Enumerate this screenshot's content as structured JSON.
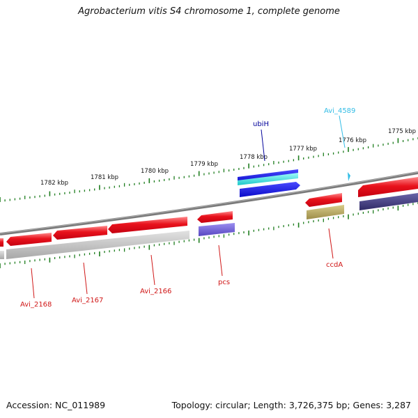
{
  "title": "Agrobacterium vitis S4 chromosome 1, complete genome",
  "footer": {
    "accession": "Accession: NC_011989",
    "summary": "Topology: circular; Length: 3,726,375 bp; Genes: 3,287"
  },
  "colors": {
    "backbone": "#7f7f7f",
    "tick": "#1e7d1e",
    "cds_red": "#e8121c",
    "cds_red_light": "#ff6b6e",
    "cds_blue": "#1010dd",
    "cds_cyan": "#28dede",
    "shadow_gray": "#b8b8b8",
    "shadow_purple": "#6a5ccc",
    "shadow_navy": "#3f3a7a",
    "shadow_olive": "#b5a560",
    "label_red": "#d01616",
    "label_blue": "#00009a",
    "label_cyan": "#33bde6"
  },
  "ruler": {
    "kbp_labels": [
      "1782 kbp",
      "1781 kbp",
      "1780 kbp",
      "1779 kbp",
      "1778 kbp",
      "1777 kbp",
      "1776 kbp",
      "1775 kbp"
    ]
  },
  "gene_labels": [
    {
      "text": "Avi_2168",
      "color": "label_red"
    },
    {
      "text": "Avi_2167",
      "color": "label_red"
    },
    {
      "text": "Avi_2166",
      "color": "label_red"
    },
    {
      "text": "pcs",
      "color": "label_red"
    },
    {
      "text": "ubiH",
      "color": "label_blue"
    },
    {
      "text": "ccdA",
      "color": "label_red"
    },
    {
      "text": "Avi_4589",
      "color": "label_cyan"
    }
  ]
}
